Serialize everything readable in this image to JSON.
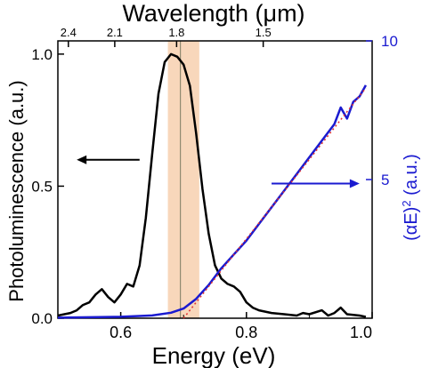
{
  "chart_data": {
    "type": "line",
    "x_axis": {
      "label": "Energy (eV)",
      "range": [
        0.5,
        1.0
      ],
      "ticks": [
        0.6,
        0.8,
        1.0
      ],
      "tick_labels": [
        "0.6",
        "0.8",
        "1.0"
      ]
    },
    "top_axis": {
      "label": "Wavelength (μm)",
      "ticks": [
        {
          "label": "2.4",
          "energy": 0.5167
        },
        {
          "label": "2.1",
          "energy": 0.5905
        },
        {
          "label": "1.8",
          "energy": 0.6889
        },
        {
          "label": "1.5",
          "energy": 0.8267
        }
      ]
    },
    "y_left": {
      "label": "Photoluminescence (a.u.)",
      "range": [
        0,
        1.05
      ],
      "ticks": [
        0,
        0.5,
        1.0
      ],
      "tick_labels": [
        "0.0",
        "0.5",
        "1.0"
      ],
      "color": "#000000"
    },
    "y_right": {
      "label": "(αE)² (a.u.)",
      "label_main": "(αE)",
      "label_sup": "2",
      "label_unit": " (a.u.)",
      "range": [
        0,
        10
      ],
      "ticks": [
        5,
        10
      ],
      "tick_labels": [
        "5",
        "10"
      ],
      "color": "#1a1ad0"
    },
    "series": [
      {
        "axis": "left",
        "color": "#000000",
        "x": [
          0.5,
          0.52,
          0.53,
          0.54,
          0.55,
          0.56,
          0.57,
          0.58,
          0.59,
          0.6,
          0.61,
          0.62,
          0.63,
          0.64,
          0.65,
          0.66,
          0.67,
          0.68,
          0.69,
          0.7,
          0.71,
          0.72,
          0.73,
          0.74,
          0.75,
          0.76,
          0.77,
          0.78,
          0.79,
          0.8,
          0.81,
          0.82,
          0.84,
          0.86,
          0.88,
          0.89,
          0.9,
          0.92,
          0.93,
          0.94,
          0.95,
          0.96,
          0.98,
          0.99
        ],
        "y": [
          0.01,
          0.02,
          0.03,
          0.05,
          0.06,
          0.09,
          0.11,
          0.08,
          0.06,
          0.09,
          0.13,
          0.12,
          0.2,
          0.38,
          0.62,
          0.85,
          0.97,
          1.0,
          0.99,
          0.96,
          0.88,
          0.7,
          0.49,
          0.32,
          0.2,
          0.15,
          0.13,
          0.12,
          0.1,
          0.06,
          0.04,
          0.03,
          0.02,
          0.015,
          0.01,
          0.02,
          0.015,
          0.03,
          0.01,
          0.02,
          0.04,
          0.015,
          0.01,
          0.005
        ]
      },
      {
        "axis": "right",
        "color": "#1a1ad0",
        "x": [
          0.5,
          0.6,
          0.65,
          0.68,
          0.7,
          0.72,
          0.74,
          0.76,
          0.78,
          0.8,
          0.82,
          0.84,
          0.86,
          0.88,
          0.9,
          0.92,
          0.94,
          0.95,
          0.96,
          0.97,
          0.98,
          0.99
        ],
        "y": [
          0.02,
          0.05,
          0.1,
          0.2,
          0.35,
          0.7,
          1.2,
          1.8,
          2.3,
          2.8,
          3.4,
          4.0,
          4.6,
          5.2,
          5.8,
          6.4,
          7.0,
          7.6,
          7.2,
          7.8,
          8.0,
          8.4
        ]
      },
      {
        "axis": "right",
        "color": "#e03030",
        "style": "dotted",
        "x": [
          0.7,
          0.99
        ],
        "y": [
          0.0,
          8.3
        ]
      }
    ],
    "annotations": [
      {
        "type": "band",
        "x_range": [
          0.675,
          0.725
        ],
        "color": "#f5c9a4"
      },
      {
        "type": "vline",
        "x": 0.695,
        "color": "#7a7a60"
      },
      {
        "type": "arrow",
        "direction": "left",
        "x_range": [
          0.53,
          0.63
        ],
        "y_left": 0.6,
        "color": "#000000"
      },
      {
        "type": "arrow",
        "direction": "right",
        "x_range": [
          0.84,
          0.98
        ],
        "y_left": 0.51,
        "color": "#1a1ad0"
      }
    ]
  }
}
